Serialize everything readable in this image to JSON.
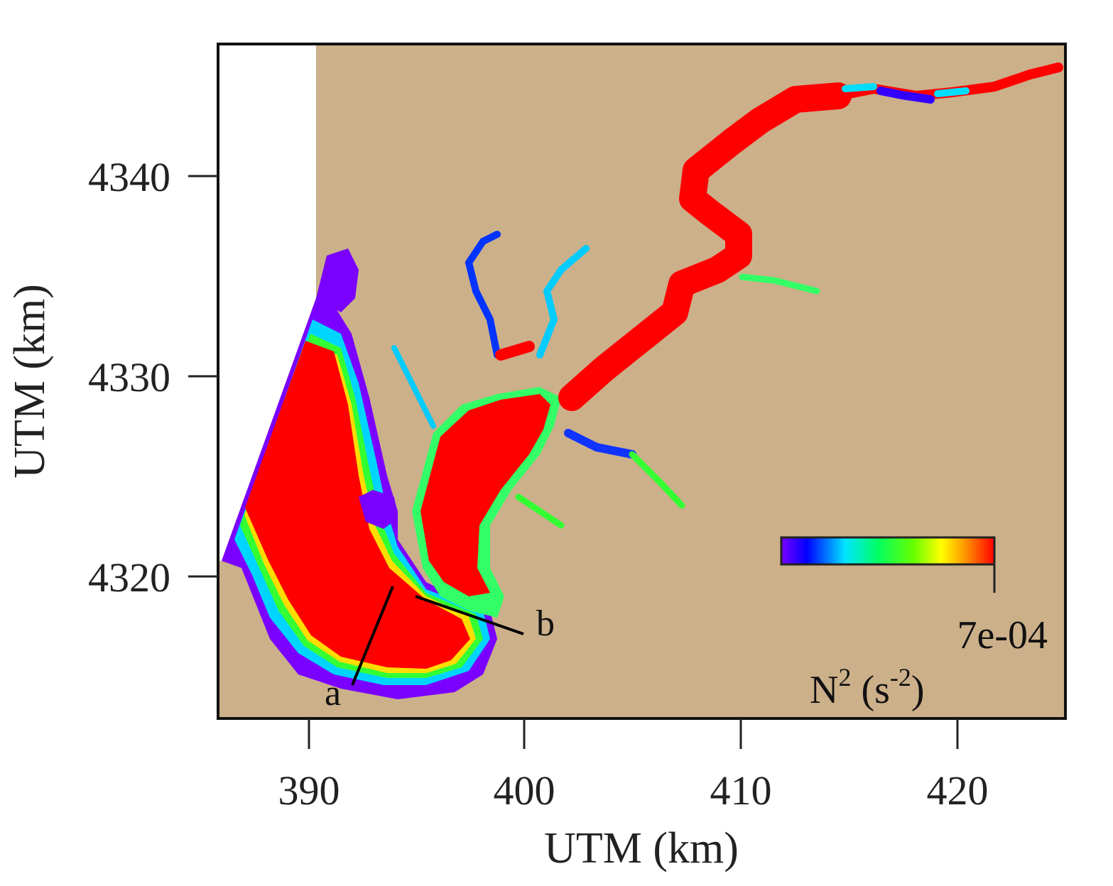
{
  "map": {
    "x_axis": {
      "title": "UTM (km)",
      "ticks": [
        "390",
        "400",
        "410",
        "420"
      ]
    },
    "y_axis": {
      "title": "UTM (km)",
      "ticks": [
        "4340",
        "4330",
        "4320"
      ]
    },
    "land_color": "#CCB08A",
    "water_high_color": "#FF0000",
    "transects": [
      {
        "label": "a"
      },
      {
        "label": "b"
      }
    ],
    "colorbar": {
      "max_label": "7e-04",
      "quantity": "N",
      "quantity_superscript": "2",
      "unit_open": " (s",
      "unit_superscript": "-2",
      "unit_close": ")",
      "colors": [
        "#0000FF",
        "#00FFFF",
        "#00FF00",
        "#FFFF00",
        "#FF0000"
      ]
    }
  }
}
